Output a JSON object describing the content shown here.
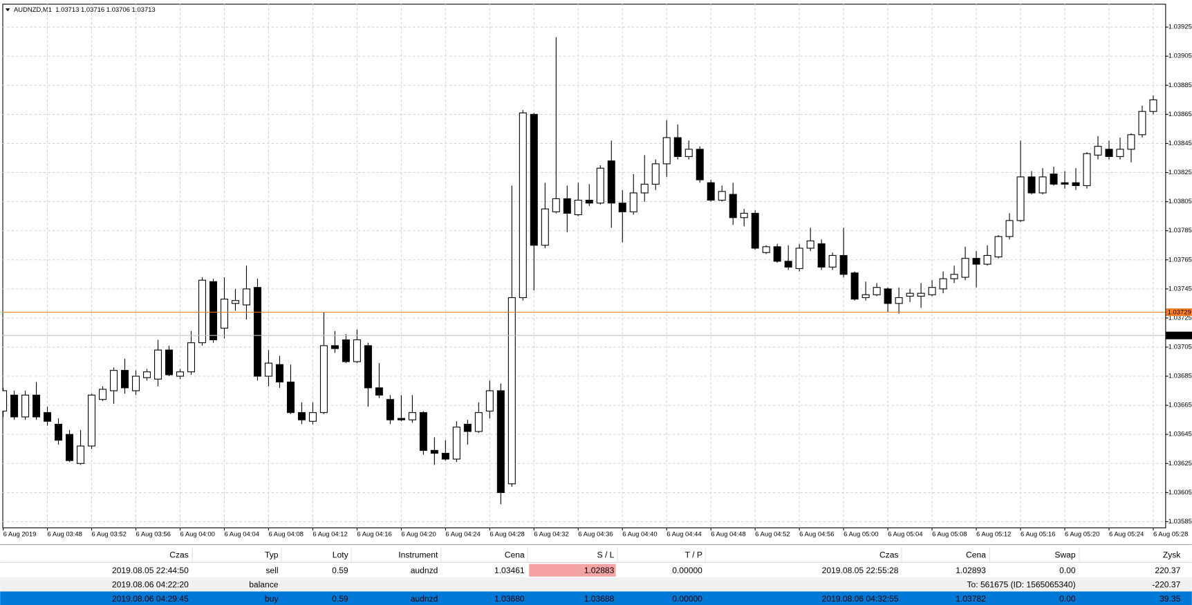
{
  "chart_data": {
    "type": "candlestick",
    "title": "AUDNZD,M1  1.03713 1.03716 1.03706 1.03713",
    "categories": [
      "6 Aug 2019",
      null,
      null,
      null,
      "6 Aug 03:48",
      null,
      null,
      null,
      "6 Aug 03:52",
      null,
      null,
      null,
      "6 Aug 03:56",
      null,
      null,
      null,
      "6 Aug 04:00",
      null,
      null,
      null,
      "6 Aug 04:04",
      null,
      null,
      null,
      "6 Aug 04:08",
      null,
      null,
      null,
      "6 Aug 04:12",
      null,
      null,
      null,
      "6 Aug 04:16",
      null,
      null,
      null,
      "6 Aug 04:20",
      null,
      null,
      null,
      "6 Aug 04:24",
      null,
      null,
      null,
      "6 Aug 04:28",
      null,
      null,
      null,
      "6 Aug 04:32",
      null,
      null,
      null,
      "6 Aug 04:36",
      null,
      null,
      null,
      "6 Aug 04:40",
      null,
      null,
      null,
      "6 Aug 04:44",
      null,
      null,
      null,
      "6 Aug 04:48",
      null,
      null,
      null,
      "6 Aug 04:52",
      null,
      null,
      null,
      "6 Aug 04:56",
      null,
      null,
      null,
      "6 Aug 05:00",
      null,
      null,
      null,
      "6 Aug 05:04",
      null,
      null,
      null,
      "6 Aug 05:08",
      null,
      null,
      null,
      "6 Aug 05:12",
      null,
      null,
      null,
      "6 Aug 05:16",
      null,
      null,
      null,
      "6 Aug 05:20",
      null,
      null,
      null,
      "6 Aug 05:24",
      null,
      null,
      null,
      "6 Aug 05:28"
    ],
    "open": [
      1.03661,
      1.03672,
      1.03657,
      1.03672,
      1.0366,
      1.03652,
      1.03645,
      1.03625,
      1.03637,
      1.03669,
      1.03675,
      1.03689,
      1.03675,
      1.03684,
      1.03683,
      1.03703,
      1.03685,
      1.03688,
      1.03708,
      1.0375,
      1.03718,
      1.03735,
      1.03734,
      1.03746,
      1.03685,
      1.03693,
      1.03681,
      1.0366,
      1.03654,
      1.0366,
      1.03706,
      1.0371,
      1.03695,
      1.03706,
      1.03677,
      1.03669,
      1.03656,
      1.03655,
      1.0366,
      1.03634,
      1.03632,
      1.03628,
      1.03652,
      1.03647,
      1.03661,
      1.03675,
      1.03611,
      1.03739,
      1.03865,
      1.03775,
      1.03798,
      1.03807,
      1.03796,
      1.03806,
      1.03804,
      1.03833,
      1.03804,
      1.03798,
      1.03811,
      1.03817,
      1.03831,
      1.03849,
      1.03836,
      1.03841,
      1.03818,
      1.03806,
      1.0381,
      1.03794,
      1.03797,
      1.0377,
      1.03774,
      1.03764,
      1.03759,
      1.03773,
      1.03776,
      1.0376,
      1.03768,
      1.03756,
      1.03739,
      1.03741,
      1.03745,
      1.03735,
      1.0374,
      1.0374,
      1.03741,
      1.03745,
      1.03752,
      1.03753,
      1.03766,
      1.03762,
      1.03767,
      1.03781,
      1.03792,
      1.03822,
      1.03811,
      1.03824,
      1.03818,
      1.03818,
      1.03816,
      1.03837,
      1.03841,
      1.03836,
      1.03841,
      1.03851,
      1.03867
    ],
    "high": [
      1.03677,
      1.03675,
      1.03675,
      1.03681,
      1.03664,
      1.03656,
      1.03648,
      1.03648,
      1.03673,
      1.03678,
      1.03691,
      1.03697,
      1.03689,
      1.0369,
      1.0371,
      1.03706,
      1.0369,
      1.03716,
      1.03753,
      1.03752,
      1.03753,
      1.03745,
      1.03761,
      1.03752,
      1.03703,
      1.03699,
      1.03693,
      1.03667,
      1.03667,
      1.03729,
      1.03716,
      1.03714,
      1.03717,
      1.03708,
      1.03694,
      1.03672,
      1.03672,
      1.03672,
      1.03661,
      1.03643,
      1.03641,
      1.03654,
      1.03655,
      1.03667,
      1.03682,
      1.0368,
      1.03816,
      1.03868,
      1.03866,
      1.03818,
      1.03918,
      1.03816,
      1.03818,
      1.03817,
      1.0383,
      1.03847,
      1.03813,
      1.03824,
      1.03837,
      1.03834,
      1.03861,
      1.03858,
      1.03847,
      1.03843,
      1.0382,
      1.03816,
      1.03818,
      1.038,
      1.03799,
      1.03775,
      1.03776,
      1.03775,
      1.03776,
      1.03787,
      1.03779,
      1.0377,
      1.03787,
      1.03757,
      1.0375,
      1.03749,
      1.03746,
      1.03746,
      1.03745,
      1.03749,
      1.03751,
      1.03757,
      1.03761,
      1.03774,
      1.03771,
      1.03775,
      1.03782,
      1.03797,
      1.03847,
      1.03826,
      1.03828,
      1.03829,
      1.03826,
      1.03828,
      1.03839,
      1.0385,
      1.03847,
      1.03849,
      1.03852,
      1.03871,
      1.03878
    ],
    "low": [
      1.03657,
      1.03655,
      1.03655,
      1.03655,
      1.03651,
      1.03638,
      1.03626,
      1.03624,
      1.03635,
      1.03668,
      1.03666,
      1.03673,
      1.03672,
      1.03682,
      1.03678,
      1.03685,
      1.03683,
      1.03686,
      1.03706,
      1.03708,
      1.03711,
      1.0373,
      1.03724,
      1.03682,
      1.03678,
      1.03677,
      1.03659,
      1.03652,
      1.03652,
      1.03659,
      1.03701,
      1.03694,
      1.03694,
      1.03664,
      1.0367,
      1.03652,
      1.03654,
      1.03653,
      1.03631,
      1.03624,
      1.03627,
      1.03626,
      1.03638,
      1.03646,
      1.03656,
      1.03597,
      1.03609,
      1.03737,
      1.03744,
      1.03773,
      1.03797,
      1.03784,
      1.03795,
      1.03802,
      1.03803,
      1.03787,
      1.03777,
      1.03796,
      1.03805,
      1.03813,
      1.03822,
      1.03834,
      1.03834,
      1.03818,
      1.03805,
      1.03805,
      1.03789,
      1.03788,
      1.03772,
      1.03769,
      1.03763,
      1.03758,
      1.03757,
      1.03771,
      1.03758,
      1.03758,
      1.03753,
      1.03737,
      1.03737,
      1.0374,
      1.03729,
      1.03728,
      1.03736,
      1.03732,
      1.0374,
      1.03742,
      1.03749,
      1.03751,
      1.03746,
      1.03761,
      1.03766,
      1.03779,
      1.03791,
      1.0381,
      1.0381,
      1.03816,
      1.03814,
      1.03813,
      1.03814,
      1.03834,
      1.03834,
      1.03834,
      1.03832,
      1.03849,
      1.03865
    ],
    "close": [
      1.03675,
      1.03657,
      1.03672,
      1.03657,
      1.03654,
      1.03641,
      1.03627,
      1.03637,
      1.03672,
      1.03676,
      1.03689,
      1.03677,
      1.03685,
      1.03688,
      1.03703,
      1.03686,
      1.03688,
      1.03708,
      1.03751,
      1.0371,
      1.03738,
      1.03737,
      1.03745,
      1.03685,
      1.03694,
      1.03681,
      1.0366,
      1.03655,
      1.0366,
      1.03706,
      1.03704,
      1.03695,
      1.0371,
      1.03677,
      1.03672,
      1.03655,
      1.03655,
      1.0366,
      1.03634,
      1.03632,
      1.03628,
      1.0365,
      1.03647,
      1.0366,
      1.03675,
      1.03605,
      1.03739,
      1.03866,
      1.03775,
      1.038,
      1.03807,
      1.03797,
      1.03806,
      1.03804,
      1.03828,
      1.03804,
      1.03798,
      1.03811,
      1.03817,
      1.03831,
      1.03849,
      1.03836,
      1.03841,
      1.0382,
      1.03806,
      1.03812,
      1.03794,
      1.03797,
      1.03773,
      1.03774,
      1.03764,
      1.0376,
      1.03773,
      1.03778,
      1.0376,
      1.03768,
      1.03755,
      1.03738,
      1.03741,
      1.03746,
      1.03735,
      1.03739,
      1.03742,
      1.03742,
      1.03746,
      1.03752,
      1.03755,
      1.03766,
      1.03762,
      1.03768,
      1.03781,
      1.03792,
      1.03822,
      1.03811,
      1.03822,
      1.03817,
      1.03817,
      1.03816,
      1.03838,
      1.03843,
      1.03836,
      1.03841,
      1.03851,
      1.03867,
      1.03875
    ],
    "up_color": "#ffffff",
    "down_color": "#000000",
    "outline_color": "#000000",
    "ylim": [
      1.03581,
      1.03941
    ],
    "yticks": [
      1.03925,
      1.03905,
      1.03885,
      1.03865,
      1.03845,
      1.03825,
      1.03805,
      1.03785,
      1.03765,
      1.03745,
      1.03725,
      1.03705,
      1.03685,
      1.03665,
      1.03645,
      1.03625,
      1.03605,
      1.03585
    ],
    "grid": true,
    "lines": [
      {
        "value": 1.03729,
        "color": "#ff7f27",
        "label_bg": "#ff7f27",
        "label_color": "#ffffff"
      },
      {
        "value": 1.03713,
        "color": "#c0c0c0",
        "label_bg": "#000000",
        "label_color": "#ffffff"
      }
    ]
  },
  "table": {
    "columns": [
      "Czas",
      "Typ",
      "Loty",
      "Instrument",
      "Cena",
      "S / L",
      "T / P",
      "Czas",
      "Cena",
      "Swap",
      "Zysk"
    ],
    "rows": [
      {
        "cells": [
          "2019.08.05 22:44:50",
          "sell",
          "0.59",
          "audnzd",
          "1.03461",
          "1.02883",
          "0.00000",
          "2019.08.05 22:55:28",
          "1.02893",
          "0.00",
          "220.37"
        ],
        "highlight_cell": 5
      },
      {
        "cells": [
          "2019.08.06 04:22:20",
          "balance",
          null,
          null,
          null,
          null,
          null,
          null,
          null,
          "To: 561675 (ID: 1565065340)",
          "-220.37"
        ],
        "shaded": true
      },
      {
        "cells": [
          "2019.08.06 04:29:45",
          "buy",
          "0.59",
          "audnzd",
          "1.03680",
          "1.03688",
          "0.00000",
          "2019.08.06 04:32:55",
          "1.03782",
          "0.00",
          "39.35"
        ],
        "selected": true
      }
    ]
  }
}
